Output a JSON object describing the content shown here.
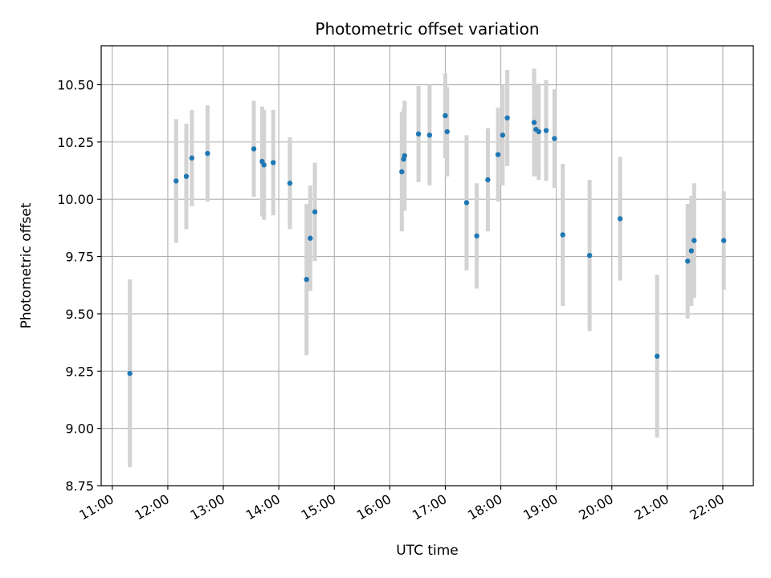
{
  "chart_data": {
    "type": "scatter",
    "title": "Photometric offset variation",
    "xlabel": "UTC time",
    "ylabel": "Photometric offset",
    "xlim": [
      "10:48",
      "22:33"
    ],
    "ylim": [
      8.75,
      10.67
    ],
    "x_ticks": [
      "11:00",
      "12:00",
      "13:00",
      "14:00",
      "15:00",
      "16:00",
      "17:00",
      "18:00",
      "19:00",
      "20:00",
      "21:00",
      "22:00"
    ],
    "y_ticks": [
      "8.75",
      "9.00",
      "9.25",
      "9.50",
      "9.75",
      "10.00",
      "10.25",
      "10.50"
    ],
    "grid": true,
    "colors": {
      "point": "#1f77b4",
      "errorbar": "#d3d3d3",
      "grid": "#b0b0b0",
      "axes": "#000000"
    },
    "series": [
      {
        "points": [
          {
            "x": "11:19",
            "y": 9.24,
            "err": 0.41
          },
          {
            "x": "12:09",
            "y": 10.08,
            "err": 0.27
          },
          {
            "x": "12:20",
            "y": 10.1,
            "err": 0.23
          },
          {
            "x": "12:26",
            "y": 10.18,
            "err": 0.21
          },
          {
            "x": "12:43",
            "y": 10.2,
            "err": 0.21
          },
          {
            "x": "13:33",
            "y": 10.22,
            "err": 0.21
          },
          {
            "x": "13:42",
            "y": 10.165,
            "err": 0.24
          },
          {
            "x": "13:44",
            "y": 10.15,
            "err": 0.24
          },
          {
            "x": "13:54",
            "y": 10.16,
            "err": 0.23
          },
          {
            "x": "14:12",
            "y": 10.07,
            "err": 0.2
          },
          {
            "x": "14:30",
            "y": 9.65,
            "err": 0.33
          },
          {
            "x": "14:34",
            "y": 9.83,
            "err": 0.23
          },
          {
            "x": "14:39",
            "y": 9.945,
            "err": 0.215
          },
          {
            "x": "16:13",
            "y": 10.12,
            "err": 0.26
          },
          {
            "x": "16:15",
            "y": 10.175,
            "err": 0.22
          },
          {
            "x": "16:16",
            "y": 10.19,
            "err": 0.24
          },
          {
            "x": "16:31",
            "y": 10.285,
            "err": 0.21
          },
          {
            "x": "16:43",
            "y": 10.28,
            "err": 0.22
          },
          {
            "x": "17:00",
            "y": 10.365,
            "err": 0.185
          },
          {
            "x": "17:02",
            "y": 10.295,
            "err": 0.195
          },
          {
            "x": "17:23",
            "y": 9.985,
            "err": 0.295
          },
          {
            "x": "17:34",
            "y": 9.84,
            "err": 0.23
          },
          {
            "x": "17:46",
            "y": 10.085,
            "err": 0.225
          },
          {
            "x": "17:57",
            "y": 10.195,
            "err": 0.205
          },
          {
            "x": "18:02",
            "y": 10.28,
            "err": 0.22
          },
          {
            "x": "18:07",
            "y": 10.355,
            "err": 0.21
          },
          {
            "x": "18:36",
            "y": 10.335,
            "err": 0.235
          },
          {
            "x": "18:38",
            "y": 10.305,
            "err": 0.2
          },
          {
            "x": "18:41",
            "y": 10.295,
            "err": 0.21
          },
          {
            "x": "18:49",
            "y": 10.3,
            "err": 0.22
          },
          {
            "x": "18:58",
            "y": 10.265,
            "err": 0.215
          },
          {
            "x": "19:07",
            "y": 9.845,
            "err": 0.31
          },
          {
            "x": "19:36",
            "y": 9.755,
            "err": 0.33
          },
          {
            "x": "20:09",
            "y": 9.915,
            "err": 0.27
          },
          {
            "x": "20:49",
            "y": 9.315,
            "err": 0.355
          },
          {
            "x": "21:22",
            "y": 9.73,
            "err": 0.25
          },
          {
            "x": "21:26",
            "y": 9.775,
            "err": 0.24
          },
          {
            "x": "21:29",
            "y": 9.82,
            "err": 0.25
          },
          {
            "x": "22:01",
            "y": 9.82,
            "err": 0.215
          }
        ]
      }
    ]
  }
}
